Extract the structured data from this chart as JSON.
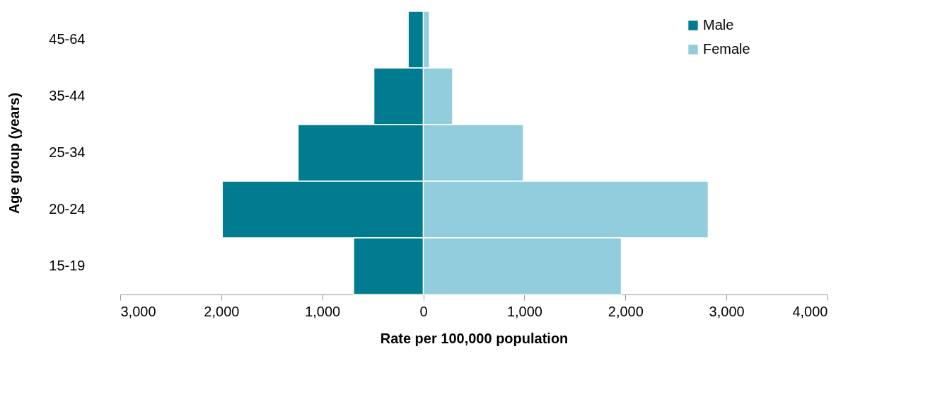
{
  "chart_data": {
    "type": "bar",
    "orientation": "horizontal",
    "ylabel": "Age group (years)",
    "xlabel": "Rate per 100,000 population",
    "categories": [
      "45-64",
      "35-44",
      "25-34",
      "20-24",
      "15-19"
    ],
    "series": [
      {
        "name": "Male",
        "color": "#007b8f",
        "values": [
          -150,
          -490,
          -1240,
          -1990,
          -690
        ]
      },
      {
        "name": "Female",
        "color": "#92cddd",
        "values": [
          60,
          290,
          990,
          2820,
          1960
        ]
      }
    ],
    "xlim": [
      -3000,
      4000
    ],
    "xticks": [
      {
        "value": -3000,
        "label": "3,000"
      },
      {
        "value": -2000,
        "label": "2,000"
      },
      {
        "value": -1000,
        "label": "1,000"
      },
      0,
      {
        "value": 1000,
        "label": "1,000"
      },
      {
        "value": 2000,
        "label": "2,000"
      },
      {
        "value": 3000,
        "label": "3,000"
      },
      {
        "value": 4000,
        "label": "4,000"
      }
    ],
    "stacked": true,
    "grid": false,
    "legend": "top right"
  }
}
